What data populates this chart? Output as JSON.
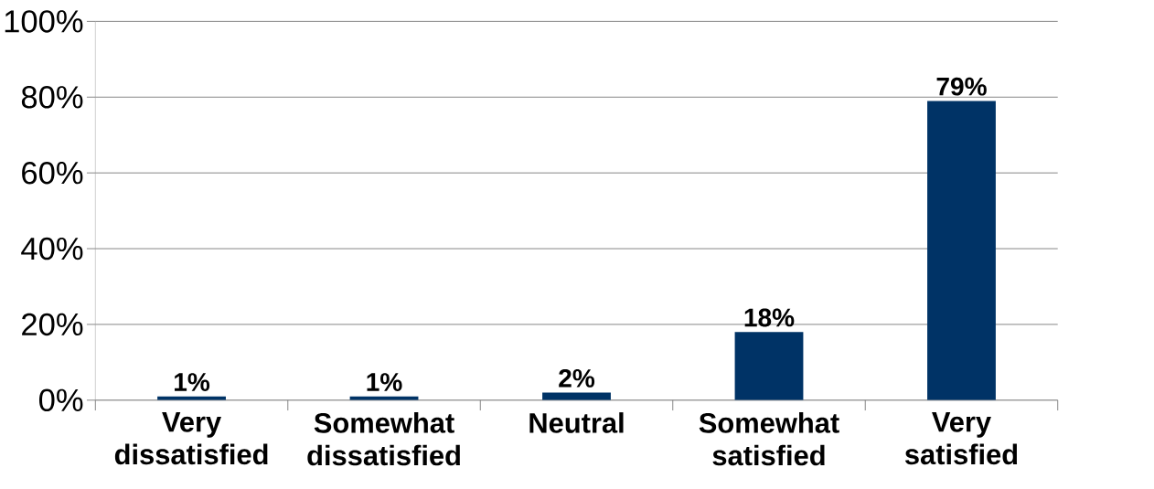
{
  "chart_data": {
    "type": "bar",
    "categories": [
      "Very dissatisfied",
      "Somewhat dissatisfied",
      "Neutral",
      "Somewhat satisfied",
      "Very satisfied"
    ],
    "values": [
      1,
      1,
      2,
      18,
      79
    ],
    "value_labels": [
      "1%",
      "1%",
      "2%",
      "18%",
      "79%"
    ],
    "color": "#003366",
    "ylim": [
      0,
      100
    ],
    "yticks": [
      {
        "value": 0,
        "label": "0%"
      },
      {
        "value": 20,
        "label": "20%"
      },
      {
        "value": 40,
        "label": "40%"
      },
      {
        "value": 60,
        "label": "60%"
      },
      {
        "value": 80,
        "label": "80%"
      },
      {
        "value": 100,
        "label": "100%"
      }
    ],
    "grid": "y"
  }
}
